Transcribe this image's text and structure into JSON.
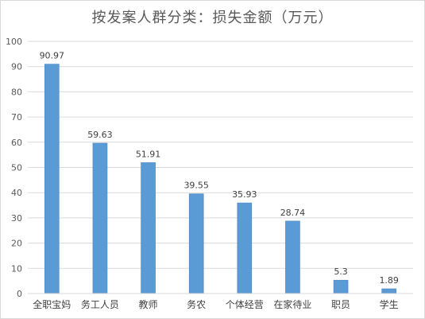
{
  "chart_data": {
    "type": "bar",
    "title": "按发案人群分类：损失金额（万元）",
    "xlabel": "",
    "ylabel": "",
    "categories": [
      "全职宝妈",
      "务工人员",
      "教师",
      "务农",
      "个体经营",
      "在家待业",
      "职员",
      "学生"
    ],
    "values": [
      90.97,
      59.63,
      51.91,
      39.55,
      35.93,
      28.74,
      5.3,
      1.89
    ],
    "data_labels": [
      "90.97",
      "59.63",
      "51.91",
      "39.55",
      "35.93",
      "28.74",
      "5.3",
      "1.89"
    ],
    "ylim": [
      0,
      100
    ],
    "yticks": [
      0,
      10,
      20,
      30,
      40,
      50,
      60,
      70,
      80,
      90,
      100
    ],
    "grid": true,
    "legend": "none",
    "bar_color": "#5b9bd5",
    "bar_edge_color": "#4a86c0",
    "grid_color": "#d9d9d9"
  }
}
